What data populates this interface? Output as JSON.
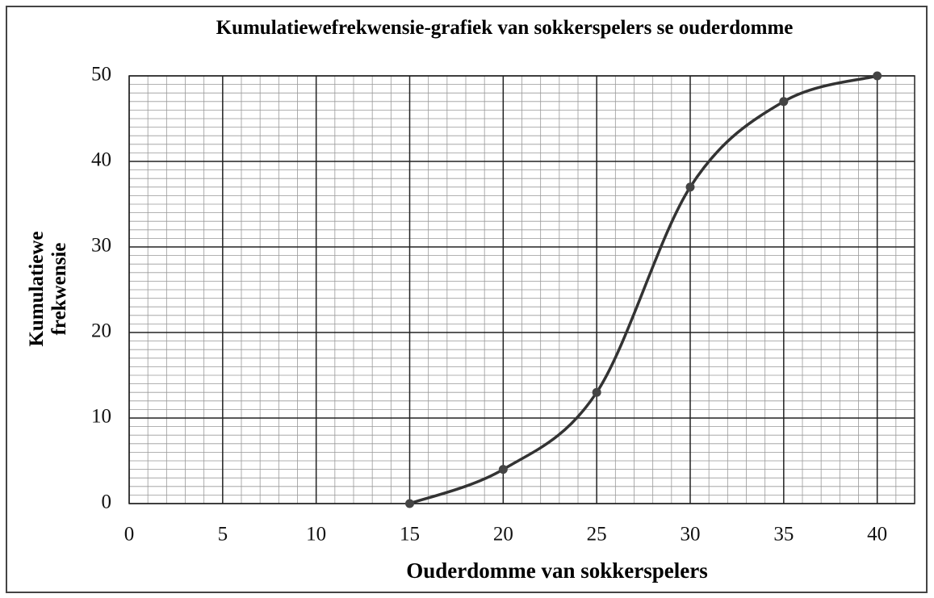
{
  "chart_data": {
    "type": "line",
    "title": "Kumulatiewefrekwensie-grafiek van sokkerspelers se ouderdomme",
    "xlabel": "Ouderdomme van sokkerspelers",
    "ylabel": "Kumulatiewe frekwensie",
    "x": [
      15,
      20,
      25,
      30,
      35,
      40
    ],
    "series": [
      {
        "name": "Kumulatiewe frekwensie",
        "color": "#333333",
        "values": [
          0,
          4,
          13,
          37,
          47,
          50
        ]
      }
    ],
    "xlim": [
      0,
      42
    ],
    "ylim": [
      0,
      50
    ],
    "xticks": [
      0,
      5,
      10,
      15,
      20,
      25,
      30,
      35,
      40
    ],
    "yticks": [
      0,
      10,
      20,
      30,
      40,
      50
    ],
    "grid": true,
    "minor_grid": {
      "x": 1,
      "y": 1
    },
    "smooth": true
  }
}
